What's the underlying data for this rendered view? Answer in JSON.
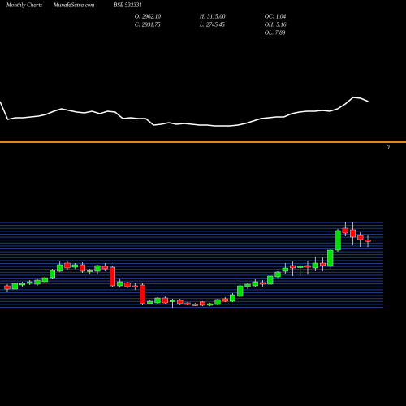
{
  "header": {
    "left": "Monthly Charts",
    "site": "MunafaSutra.com",
    "symbol": "BSE 532331",
    "stats": [
      "O: 2962.10",
      "C: 2931.75",
      "H: 3115.00",
      "L: 2745.45",
      "OC: 1.04",
      "OH: 5.16",
      "OL: 7.89"
    ],
    "marker": "0"
  },
  "chart_data": [
    {
      "type": "line",
      "color": "#ffffff",
      "ylim": [
        0,
        100
      ],
      "values": [
        75,
        53,
        55,
        55,
        56,
        57,
        59,
        63,
        66,
        64,
        62,
        61,
        63,
        60,
        63,
        62,
        54,
        55,
        54,
        54,
        46,
        47,
        49,
        47,
        48,
        47,
        46,
        46,
        45,
        45,
        45,
        46,
        48,
        51,
        54,
        55,
        56,
        56,
        60,
        62,
        63,
        63,
        64,
        63,
        66,
        72,
        80,
        79,
        75
      ]
    },
    {
      "type": "candlestick",
      "up_color": "#00dd00",
      "down_color": "#ff0000",
      "ylim": [
        855,
        3555
      ],
      "open": [
        1555,
        1455,
        1580,
        1630,
        1605,
        1680,
        1805,
        2005,
        2255,
        2130,
        2205,
        2005,
        2005,
        2155,
        2130,
        1555,
        1655,
        1555,
        1580,
        1005,
        1030,
        1180,
        1080,
        1105,
        1030,
        980,
        1055,
        955,
        980,
        1155,
        1080,
        1230,
        1530,
        1555,
        1655,
        1605,
        1830,
        2005,
        2180,
        2130,
        2180,
        2105,
        2255,
        2155,
        2655,
        3330,
        3280,
        3105,
        2962.1
      ],
      "high": [
        1605,
        1655,
        1680,
        1730,
        1780,
        1855,
        2080,
        2305,
        2305,
        2255,
        2280,
        2080,
        2205,
        2255,
        2180,
        1780,
        1680,
        1655,
        1630,
        1130,
        1205,
        1230,
        1155,
        1155,
        1055,
        1030,
        1080,
        1030,
        1155,
        1205,
        1330,
        1605,
        1655,
        1755,
        1730,
        1880,
        2005,
        2255,
        2305,
        2230,
        2330,
        2455,
        2430,
        2730,
        3305,
        3530,
        3505,
        3205,
        3115.0
      ],
      "low": [
        1355,
        1430,
        1530,
        1580,
        1555,
        1655,
        1780,
        1980,
        2055,
        2080,
        1955,
        1905,
        1905,
        2005,
        1530,
        1505,
        1480,
        1430,
        955,
        980,
        1005,
        1005,
        880,
        955,
        955,
        930,
        930,
        930,
        955,
        1055,
        1055,
        1205,
        1455,
        1530,
        1530,
        1580,
        1805,
        1930,
        1855,
        1855,
        1905,
        2005,
        2005,
        2030,
        2605,
        3080,
        2805,
        2755,
        2745.45
      ],
      "close": [
        1455,
        1630,
        1630,
        1680,
        1730,
        1805,
        2030,
        2205,
        2105,
        2205,
        2005,
        2030,
        2180,
        2080,
        1555,
        1680,
        1530,
        1530,
        1005,
        1080,
        1180,
        1030,
        1105,
        1005,
        980,
        955,
        955,
        1005,
        1130,
        1080,
        1280,
        1555,
        1605,
        1680,
        1605,
        1855,
        1980,
        2105,
        2105,
        2155,
        2130,
        2255,
        2180,
        2655,
        3255,
        3180,
        3055,
        2980,
        2931.75
      ]
    }
  ]
}
